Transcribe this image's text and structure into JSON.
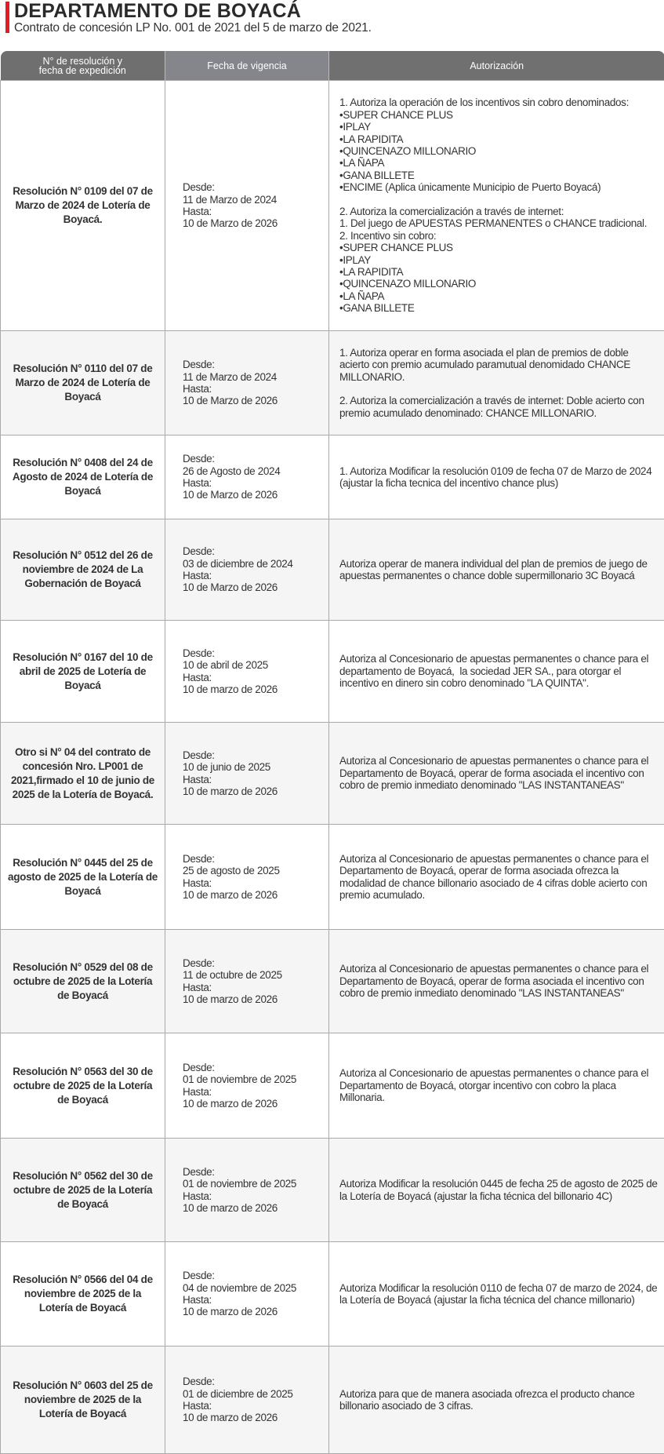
{
  "header": {
    "title": "DEPARTAMENTO DE BOYACÁ",
    "subtitle": "Contrato de concesión LP No. 001 de 2021 del 5 de marzo de 2021.",
    "accent_color": "#e31b23"
  },
  "table": {
    "columns": [
      "N° de resolución y\nfecha de expedición",
      "Fecha de vigencia",
      "Autorización"
    ],
    "rows": [
      {
        "resolucion": "Resolución N° 0109  del 07 de Marzo de 2024 de Lotería de Boyacá.",
        "vigencia": [
          "Desde:",
          "11 de Marzo de 2024",
          "Hasta:",
          "10 de Marzo de 2026"
        ],
        "autorizacion": [
          "1. Autoriza la operación de los incentivos sin cobro denominados:",
          "•SUPER CHANCE PLUS",
          "•IPLAY",
          "•LA RAPIDITA",
          "•QUINCENAZO MILLONARIO",
          "•LA ÑAPA",
          "•GANA BILLETE",
          "•ENCIME (Aplica únicamente Municipio de Puerto Boyacá)",
          "",
          "2. Autoriza la comercialización a través de internet:",
          "1. Del juego de APUESTAS PERMANENTES o CHANCE tradicional.",
          "2. Incentivo sin cobro:",
          "•SUPER CHANCE PLUS",
          "•IPLAY",
          "•LA RAPIDITA",
          "•QUINCENAZO MILLONARIO",
          "•LA ÑAPA",
          "•GANA BILLETE"
        ]
      },
      {
        "resolucion": "Resolución N° 0110 del 07 de Marzo de 2024 de Lotería de Boyacá",
        "vigencia": [
          "Desde:",
          "11 de Marzo de 2024",
          "Hasta:",
          "10 de Marzo de 2026"
        ],
        "autorizacion": [
          "1. Autoriza operar en forma asociada el plan de premios de doble acierto con premio acumulado paramutual denomidado CHANCE MILLONARIO.",
          "",
          "2. Autoriza la comercialización a través de internet: Doble acierto con premio acumulado denominado: CHANCE MILLONARIO."
        ]
      },
      {
        "resolucion": "Resolución N° 0408 del 24 de Agosto de 2024 de Lotería de Boyacá",
        "vigencia": [
          "Desde:",
          "26 de Agosto de 2024",
          "Hasta:",
          "10 de Marzo de 2026"
        ],
        "autorizacion": [
          "1. Autoriza Modificar la resolución 0109 de fecha 07 de Marzo de 2024 (ajustar la ficha tecnica del incentivo chance plus)"
        ]
      },
      {
        "resolucion": "Resolución N° 0512 del 26 de noviembre de 2024 de La Gobernación de Boyacá",
        "vigencia": [
          "Desde:",
          "03 de diciembre de 2024",
          "Hasta:",
          "10 de Marzo de 2026"
        ],
        "autorizacion": [
          "Autoriza operar de manera individual del plan de premios de juego de  apuestas permanentes o chance doble supermillonario 3C Boyacá"
        ]
      },
      {
        "resolucion": "Resolución N° 0167 del 10 de abril de 2025 de Lotería de Boyacá",
        "vigencia": [
          "Desde:",
          "10 de abril de 2025",
          "Hasta:",
          "10 de marzo de 2026"
        ],
        "autorizacion": [
          "Autoriza al Concesionario de apuestas permanentes o chance para el departamento de Boyacá,  la sociedad JER SA., para otorgar el incentivo en dinero sin cobro denominado \"LA QUINTA\"."
        ]
      },
      {
        "resolucion": "Otro si N° 04 del contrato de concesión Nro. LP001 de 2021,firmado el 10 de junio de 2025 de la Lotería de Boyacá.",
        "vigencia": [
          "Desde:",
          "10 de junio de 2025",
          "Hasta:",
          "10 de marzo de 2026"
        ],
        "autorizacion": [
          "Autoriza al Concesionario de apuestas permanentes o chance para el Departamento de Boyacá, operar de forma asociada el incentivo con cobro de premio inmediato denominado \"LAS INSTANTANEAS\""
        ]
      },
      {
        "resolucion": "Resolución N° 0445 del 25 de agosto de 2025 de la Lotería de Boyacá",
        "vigencia": [
          "Desde:",
          "25 de agosto de 2025",
          "Hasta:",
          "10 de marzo de 2026"
        ],
        "autorizacion": [
          "Autoriza al Concesionario de apuestas permanentes o chance para el Departamento de Boyacá, operar de forma asociada ofrezca la modalidad de chance billonario asociado de 4 cifras doble acierto con premio acumulado."
        ]
      },
      {
        "resolucion": "Resolución N° 0529 del 08 de octubre de 2025 de la Lotería de Boyacá",
        "vigencia": [
          "Desde:",
          "11 de octubre de 2025",
          "Hasta:",
          "10 de marzo de 2026"
        ],
        "autorizacion": [
          "Autoriza al Concesionario de apuestas permanentes o chance para el Departamento de Boyacá, operar de forma asociada el incentivo con cobro de premio inmediato denominado \"LAS INSTANTANEAS\""
        ]
      },
      {
        "resolucion": "Resolución N° 0563 del 30 de octubre de 2025 de la Lotería de Boyacá",
        "vigencia": [
          "Desde:",
          "01 de noviembre de 2025",
          "Hasta:",
          "10 de marzo de 2026"
        ],
        "autorizacion": [
          "Autoriza al Concesionario de apuestas permanentes o chance para el Departamento de Boyacá, otorgar incentivo con cobro la placa Millonaria."
        ]
      },
      {
        "resolucion": "Resolución N° 0562 del 30 de octubre de 2025 de la Lotería de Boyacá",
        "vigencia": [
          "Desde:",
          "01 de noviembre de 2025",
          "Hasta:",
          "10 de marzo de 2026"
        ],
        "autorizacion": [
          "Autoriza Modificar la resolución 0445 de fecha 25 de agosto de 2025 de la Lotería de Boyacá (ajustar la ficha técnica del billonario 4C)"
        ]
      },
      {
        "resolucion": "Resolución N° 0566 del 04 de noviembre de 2025 de la Lotería de Boyacá",
        "vigencia": [
          "Desde:",
          "04 de noviembre de 2025",
          "Hasta:",
          "10 de marzo de 2026"
        ],
        "autorizacion": [
          "Autoriza Modificar la resolución 0110 de fecha 07 de marzo de 2024, de la Lotería de Boyacá (ajustar la ficha técnica del chance millonario)"
        ]
      },
      {
        "resolucion": "Resolución N° 0603 del 25 de noviembre de 2025 de la Lotería de Boyacá",
        "vigencia": [
          "Desde:",
          "01 de diciembre de 2025",
          "Hasta:",
          "10 de marzo de 2026"
        ],
        "autorizacion": [
          "Autoriza para que de manera asociada ofrezca el producto chance billonario asociado de 3 cifras."
        ]
      }
    ]
  }
}
